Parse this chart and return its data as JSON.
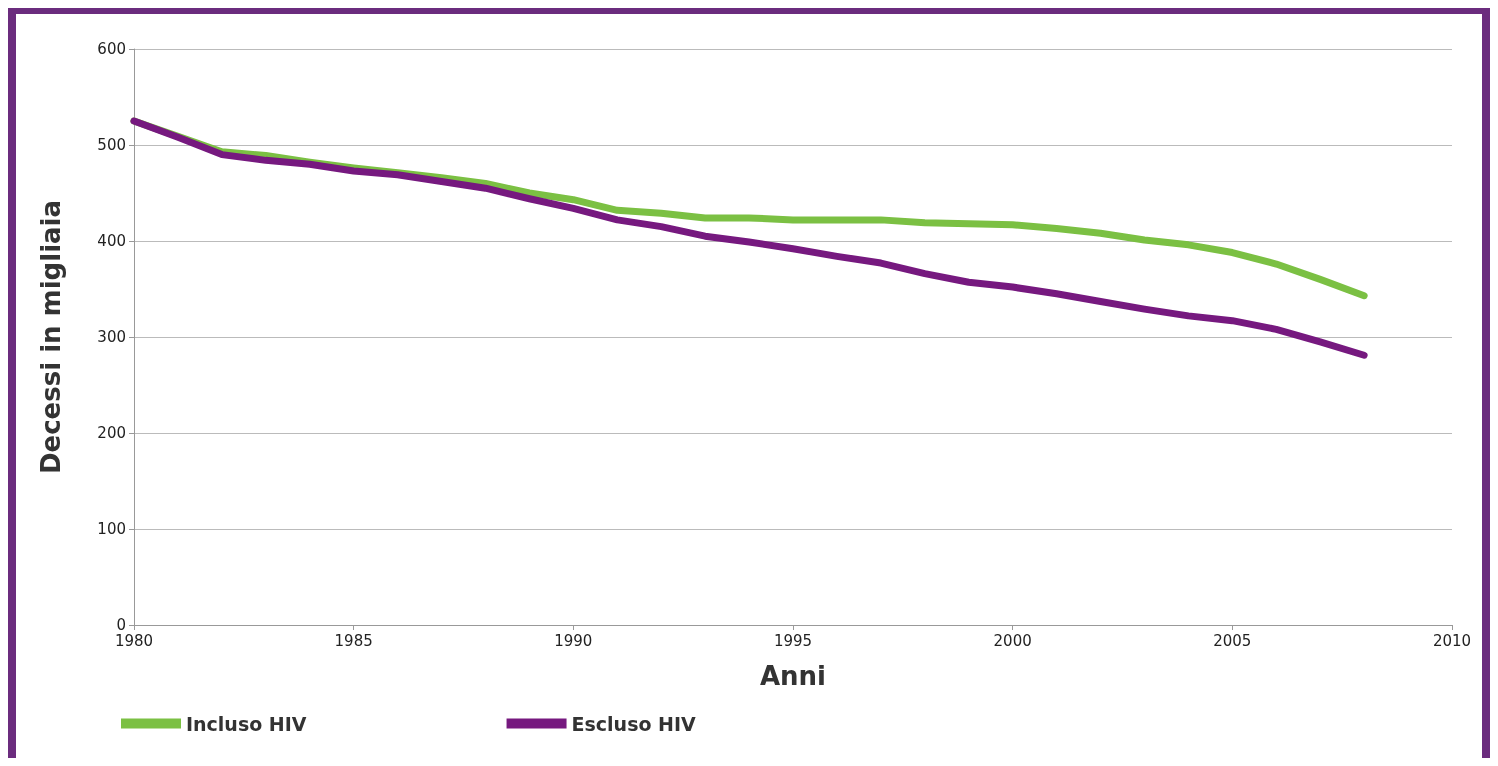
{
  "chart_data": {
    "type": "line",
    "xlabel": "Anni",
    "ylabel": "Decessi in migliaia",
    "x": [
      1980,
      1981,
      1982,
      1983,
      1984,
      1985,
      1986,
      1987,
      1988,
      1989,
      1990,
      1991,
      1992,
      1993,
      1994,
      1995,
      1996,
      1997,
      1998,
      1999,
      2000,
      2001,
      2002,
      2003,
      2004,
      2005,
      2006,
      2007,
      2008
    ],
    "series": [
      {
        "name": "Incluso HIV",
        "color": "#7bc043",
        "values": [
          525,
          509,
          493,
          489,
          482,
          476,
          471,
          466,
          460,
          450,
          443,
          432,
          429,
          424,
          424,
          422,
          422,
          422,
          419,
          418,
          417,
          413,
          408,
          401,
          396,
          388,
          376,
          360,
          343
        ]
      },
      {
        "name": "Escluso HIV",
        "color": "#76197f",
        "values": [
          525,
          508,
          490,
          484,
          480,
          473,
          469,
          462,
          455,
          444,
          434,
          422,
          415,
          405,
          399,
          392,
          384,
          377,
          366,
          357,
          352,
          345,
          337,
          329,
          322,
          317,
          308,
          295,
          281
        ]
      }
    ],
    "xlim": [
      1980,
      2010
    ],
    "xticks": [
      1980,
      1985,
      1990,
      1995,
      2000,
      2005,
      2010
    ],
    "ylim": [
      0,
      600
    ],
    "yticks": [
      0,
      100,
      200,
      300,
      400,
      500,
      600
    ],
    "grid": "y",
    "legend": "bottom",
    "marker": "none",
    "line_style": "solid"
  }
}
